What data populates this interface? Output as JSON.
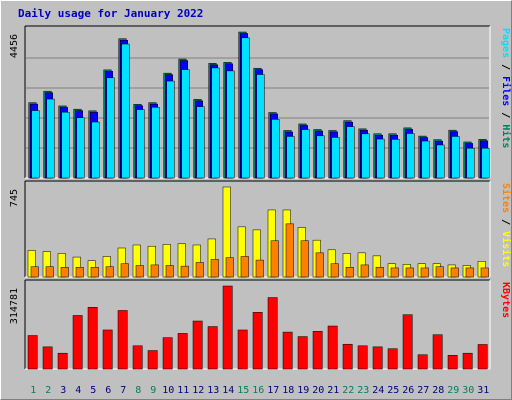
{
  "title": "Daily usage for January 2022",
  "colors": {
    "hits": "#00805c",
    "files": "#0000ff",
    "pages": "#00e0ff",
    "visits": "#ffff00",
    "sites": "#ff8000",
    "kbytes": "#ff0000",
    "days_weekend": "#00805c",
    "days_weekday": "#000080"
  },
  "chart_data": [
    {
      "type": "bar",
      "panel": "hits-files-pages",
      "categories": [
        "1",
        "2",
        "3",
        "4",
        "5",
        "6",
        "7",
        "8",
        "9",
        "10",
        "11",
        "12",
        "13",
        "14",
        "15",
        "16",
        "17",
        "18",
        "19",
        "20",
        "21",
        "22",
        "23",
        "24",
        "25",
        "26",
        "27",
        "28",
        "29",
        "30",
        "31"
      ],
      "ymax_label": "4456",
      "ylim": [
        0,
        4456
      ],
      "legend": [
        {
          "label": "Hits",
          "color": "#00805c"
        },
        {
          "label": "Files",
          "color": "#0000ff"
        },
        {
          "label": "Pages",
          "color": "#00e0ff"
        }
      ],
      "series": [
        {
          "name": "Hits",
          "values": [
            2300,
            2650,
            2200,
            2100,
            2050,
            3300,
            4250,
            2250,
            2300,
            3200,
            3630,
            2400,
            3500,
            3530,
            4456,
            3350,
            2000,
            1450,
            1650,
            1480,
            1450,
            1750,
            1500,
            1350,
            1350,
            1530,
            1280,
            1170,
            1460,
            1100,
            1180
          ]
        },
        {
          "name": "Files",
          "values": [
            2300,
            2650,
            2200,
            2100,
            2050,
            3300,
            4250,
            2250,
            2300,
            3200,
            3630,
            2400,
            3500,
            3530,
            4456,
            3350,
            2000,
            1450,
            1650,
            1480,
            1450,
            1750,
            1500,
            1350,
            1350,
            1530,
            1280,
            1170,
            1460,
            1100,
            1180
          ]
        },
        {
          "name": "Pages",
          "values": [
            2150,
            2500,
            2100,
            1930,
            1800,
            3150,
            4180,
            2180,
            2250,
            3050,
            3400,
            2270,
            3450,
            3360,
            4370,
            3250,
            1880,
            1360,
            1570,
            1380,
            1330,
            1660,
            1440,
            1280,
            1270,
            1450,
            1220,
            1100,
            1360,
            1000,
            1000
          ]
        }
      ]
    },
    {
      "type": "bar",
      "panel": "visits-sites",
      "categories": [
        "1",
        "2",
        "3",
        "4",
        "5",
        "6",
        "7",
        "8",
        "9",
        "10",
        "11",
        "12",
        "13",
        "14",
        "15",
        "16",
        "17",
        "18",
        "19",
        "20",
        "21",
        "22",
        "23",
        "24",
        "25",
        "26",
        "27",
        "28",
        "29",
        "30",
        "31"
      ],
      "ymax_label": "745",
      "ylim": [
        0,
        745
      ],
      "legend": [
        {
          "label": "Visits",
          "color": "#ffff00"
        },
        {
          "label": "Sites",
          "color": "#ff8000"
        }
      ],
      "series": [
        {
          "name": "Visits",
          "values": [
            220,
            210,
            195,
            165,
            135,
            170,
            240,
            265,
            255,
            270,
            275,
            265,
            315,
            745,
            415,
            390,
            555,
            555,
            410,
            305,
            225,
            195,
            200,
            175,
            110,
            105,
            110,
            110,
            100,
            95,
            130
          ]
        },
        {
          "name": "Sites",
          "values": [
            85,
            85,
            80,
            80,
            80,
            85,
            110,
            95,
            100,
            95,
            90,
            120,
            145,
            160,
            170,
            140,
            300,
            440,
            300,
            200,
            110,
            80,
            100,
            80,
            75,
            75,
            75,
            85,
            75,
            75,
            75
          ]
        }
      ]
    },
    {
      "type": "bar",
      "panel": "kbytes",
      "categories": [
        "1",
        "2",
        "3",
        "4",
        "5",
        "6",
        "7",
        "8",
        "9",
        "10",
        "11",
        "12",
        "13",
        "14",
        "15",
        "16",
        "17",
        "18",
        "19",
        "20",
        "21",
        "22",
        "23",
        "24",
        "25",
        "26",
        "27",
        "28",
        "29",
        "30",
        "31"
      ],
      "ymax_label": "314781",
      "ylim": [
        0,
        314781
      ],
      "legend": [
        {
          "label": "KBytes",
          "color": "#ff0000"
        }
      ],
      "series": [
        {
          "name": "KBytes",
          "values": [
            127000,
            84000,
            60000,
            203000,
            234000,
            148000,
            222000,
            88000,
            70000,
            119000,
            135000,
            182000,
            161000,
            314781,
            148000,
            215000,
            271000,
            140000,
            123000,
            143000,
            163000,
            94000,
            88000,
            84000,
            77000,
            206000,
            54000,
            130000,
            52000,
            60000,
            93000
          ]
        }
      ]
    }
  ]
}
